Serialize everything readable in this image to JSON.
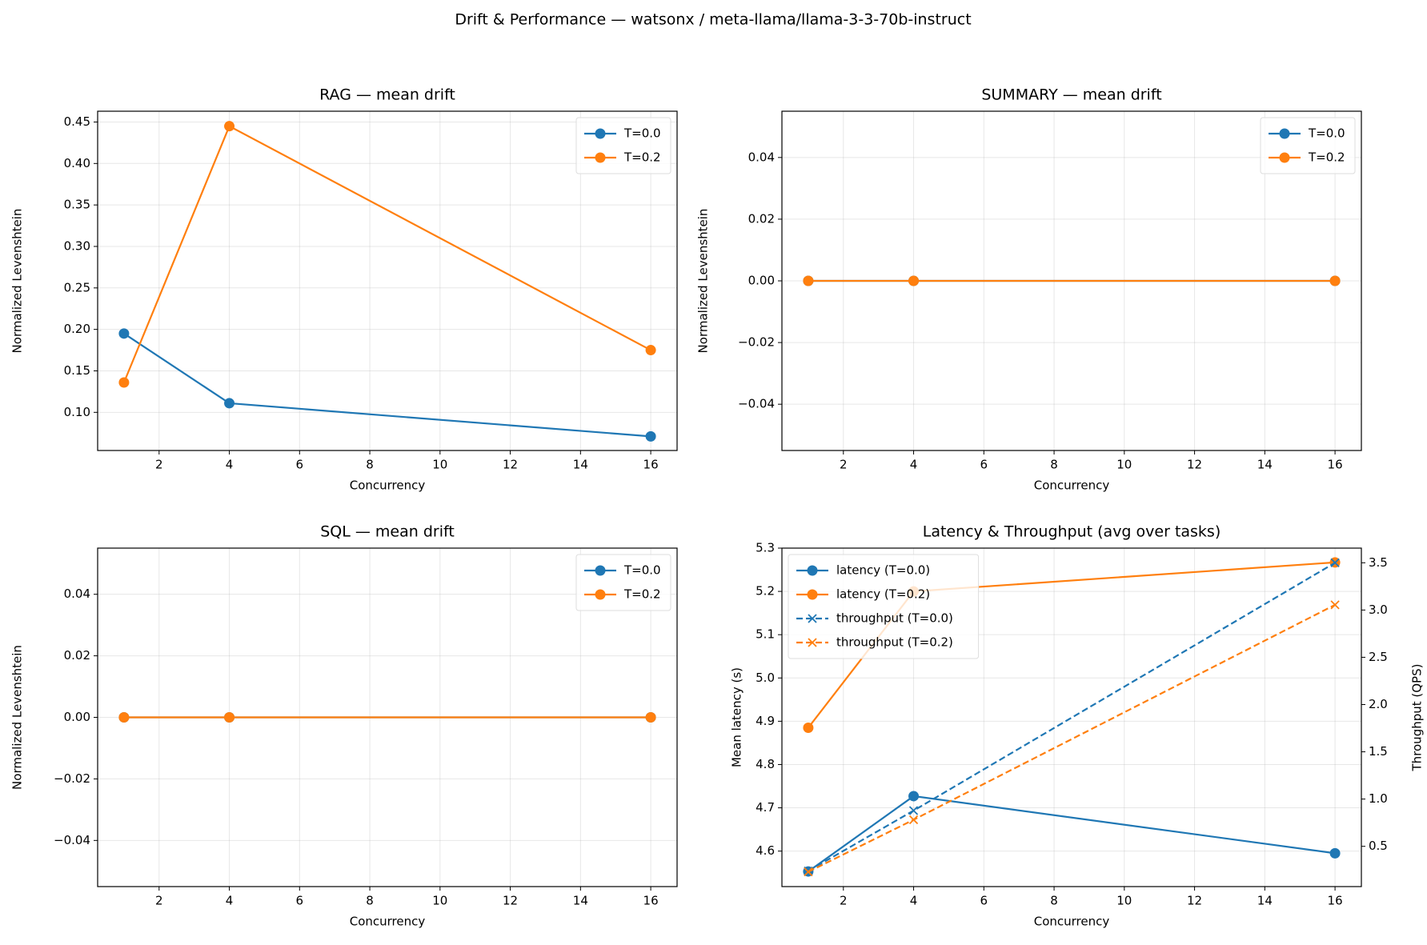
{
  "title": "Drift & Performance — watsonx / meta-llama/llama-3-3-70b-instruct",
  "chart_data": [
    {
      "type": "line",
      "title": "RAG — mean drift",
      "xlabel": "Concurrency",
      "ylabel": "Normalized Levenshtein",
      "x": [
        1,
        4,
        16
      ],
      "series": [
        {
          "name": "T=0.0",
          "color": "#1f77b4",
          "marker": "o",
          "linestyle": "solid",
          "values": [
            0.195,
            0.111,
            0.071
          ]
        },
        {
          "name": "T=0.2",
          "color": "#ff7f0e",
          "marker": "o",
          "linestyle": "solid",
          "values": [
            0.136,
            0.445,
            0.175
          ]
        }
      ],
      "xlim": [
        0.25,
        16.75
      ],
      "xticks": [
        2,
        4,
        6,
        8,
        10,
        12,
        14,
        16
      ],
      "ylim": [
        0.054,
        0.463
      ],
      "yticks": [
        {
          "value": 0.1,
          "label": "0.10"
        },
        0.15,
        {
          "value": 0.2,
          "label": "0.20"
        },
        0.25,
        {
          "value": 0.3,
          "label": "0.30"
        },
        0.35,
        {
          "value": 0.4,
          "label": "0.40"
        },
        0.45
      ],
      "grid": true,
      "legend": "upper right"
    },
    {
      "type": "line",
      "title": "SUMMARY — mean drift",
      "xlabel": "Concurrency",
      "ylabel": "Normalized Levenshtein",
      "x": [
        1,
        4,
        16
      ],
      "series": [
        {
          "name": "T=0.0",
          "color": "#1f77b4",
          "marker": "o",
          "linestyle": "solid",
          "values": [
            0,
            0,
            0
          ]
        },
        {
          "name": "T=0.2",
          "color": "#ff7f0e",
          "marker": "o",
          "linestyle": "solid",
          "values": [
            0,
            0,
            0
          ]
        }
      ],
      "xlim": [
        0.25,
        16.75
      ],
      "xticks": [
        2,
        4,
        6,
        8,
        10,
        12,
        14,
        16
      ],
      "ylim": [
        -0.055,
        0.055
      ],
      "yticks": [
        {
          "value": -0.04,
          "label": "−0.04"
        },
        {
          "value": -0.02,
          "label": "−0.02"
        },
        {
          "value": 0,
          "label": "0.00"
        },
        0.02,
        0.04
      ],
      "grid": true,
      "legend": "upper right"
    },
    {
      "type": "line",
      "title": "SQL — mean drift",
      "xlabel": "Concurrency",
      "ylabel": "Normalized Levenshtein",
      "x": [
        1,
        4,
        16
      ],
      "series": [
        {
          "name": "T=0.0",
          "color": "#1f77b4",
          "marker": "o",
          "linestyle": "solid",
          "values": [
            0,
            0,
            0
          ]
        },
        {
          "name": "T=0.2",
          "color": "#ff7f0e",
          "marker": "o",
          "linestyle": "solid",
          "values": [
            0,
            0,
            0
          ]
        }
      ],
      "xlim": [
        0.25,
        16.75
      ],
      "xticks": [
        2,
        4,
        6,
        8,
        10,
        12,
        14,
        16
      ],
      "ylim": [
        -0.055,
        0.055
      ],
      "yticks": [
        {
          "value": -0.04,
          "label": "−0.04"
        },
        {
          "value": -0.02,
          "label": "−0.02"
        },
        {
          "value": 0,
          "label": "0.00"
        },
        0.02,
        0.04
      ],
      "grid": true,
      "legend": "upper right"
    },
    {
      "type": "line",
      "title": "Latency & Throughput (avg over tasks)",
      "xlabel": "Concurrency",
      "ylabel": "Mean latency (s)",
      "y2label": "Throughput (QPS)",
      "x": [
        1,
        4,
        16
      ],
      "series": [
        {
          "name": "latency (T=0.0)",
          "color": "#1f77b4",
          "marker": "o",
          "linestyle": "solid",
          "values": [
            4.553,
            4.727,
            4.595
          ]
        },
        {
          "name": "latency (T=0.2)",
          "color": "#ff7f0e",
          "marker": "o",
          "linestyle": "solid",
          "values": [
            4.885,
            5.2,
            5.267
          ]
        },
        {
          "name": "throughput (T=0.0)",
          "color": "#1f77b4",
          "marker": "x",
          "linestyle": "dashed",
          "axis": "y2",
          "values": [
            0.239,
            0.878,
            3.5
          ]
        },
        {
          "name": "throughput (T=0.2)",
          "color": "#ff7f0e",
          "marker": "x",
          "linestyle": "dashed",
          "axis": "y2",
          "values": [
            0.23,
            0.781,
            3.055
          ]
        }
      ],
      "xlim": [
        0.25,
        16.75
      ],
      "xticks": [
        2,
        4,
        6,
        8,
        10,
        12,
        14,
        16
      ],
      "ylim": [
        4.518,
        5.3
      ],
      "yticks": [
        4.6,
        4.7,
        4.8,
        4.9,
        {
          "value": 5,
          "label": "5.0"
        },
        5.1,
        5.2,
        5.3
      ],
      "y2lim": [
        0.074,
        3.655
      ],
      "y2ticks": [
        0.5,
        {
          "value": 1,
          "label": "1.0"
        },
        1.5,
        {
          "value": 2,
          "label": "2.0"
        },
        2.5,
        {
          "value": 3,
          "label": "3.0"
        },
        3.5
      ],
      "grid": true,
      "legend": "upper left"
    }
  ]
}
